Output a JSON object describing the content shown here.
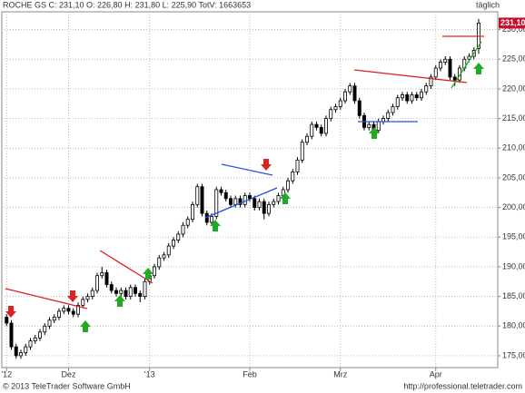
{
  "chart_data": {
    "type": "candlestick",
    "title": "ROCHE GS C: 231,10 O: 226,80 H: 231,80 L: 225,90 TotV: 1663653",
    "period": "täglich",
    "last_label": {
      "value": 231.1,
      "label": "231,10"
    },
    "footer_left": "© 2013 TeleTrader Software GmbH",
    "footer_right": "http://professional.teletrader.com",
    "xlim": [
      -1,
      103
    ],
    "xticks": [
      {
        "value": 0,
        "label": "'12"
      },
      {
        "value": 13,
        "label": "Dez"
      },
      {
        "value": 30,
        "label": "'13"
      },
      {
        "value": 51,
        "label": "Feb"
      },
      {
        "value": 70,
        "label": "Mrz"
      },
      {
        "value": 90,
        "label": "Apr"
      }
    ],
    "ylim": [
      173,
      233
    ],
    "yticks": [
      {
        "value": 175,
        "label": "175,00"
      },
      {
        "value": 180,
        "label": "180,00"
      },
      {
        "value": 185,
        "label": "185,00"
      },
      {
        "value": 190,
        "label": "190,00"
      },
      {
        "value": 195,
        "label": "195,00"
      },
      {
        "value": 200,
        "label": "200,00"
      },
      {
        "value": 205,
        "label": "205,00"
      },
      {
        "value": 210,
        "label": "210,00"
      },
      {
        "value": 215,
        "label": "215,00"
      },
      {
        "value": 220,
        "label": "220,00"
      },
      {
        "value": 225,
        "label": "225,00"
      },
      {
        "value": 230,
        "label": "230,00"
      }
    ],
    "grid": true,
    "up_color": "#ffffff",
    "down_color": "#000000",
    "open": [
      181.5,
      180.5,
      176.5,
      175,
      175.5,
      176.5,
      177.5,
      178,
      179,
      180,
      181,
      181.5,
      182.5,
      183,
      182.5,
      182,
      183.5,
      184.5,
      185,
      186,
      188.5,
      189,
      187,
      186,
      185.5,
      186,
      185,
      186.5,
      185.5,
      185,
      187.5,
      188.5,
      190,
      191.5,
      192,
      193.5,
      194.5,
      195.5,
      197,
      198,
      200.5,
      203.5,
      199,
      197.5,
      198.5,
      203,
      202.5,
      201.5,
      200.5,
      201.5,
      200.5,
      202,
      201.5,
      200,
      201,
      199,
      200.5,
      201,
      202,
      203,
      204.5,
      206,
      208,
      211,
      212,
      214,
      213.5,
      212.5,
      215,
      216.5,
      217,
      218,
      219.5,
      220.5,
      218,
      215.5,
      213.5,
      214,
      213,
      214.5,
      215,
      216,
      217,
      218.5,
      219,
      218,
      219,
      218.5,
      219.5,
      220.5,
      222,
      223.5,
      224.5,
      225,
      222,
      221.5,
      223.5,
      225,
      225.5,
      226.8
    ],
    "high": [
      182,
      181,
      177,
      176,
      177,
      178,
      178.5,
      179.5,
      180.5,
      181.5,
      182,
      183,
      183.5,
      183.5,
      183,
      184,
      185,
      185.5,
      186.5,
      189,
      190,
      189.5,
      187.5,
      186.5,
      186.5,
      186.5,
      187,
      187,
      186,
      188,
      189,
      190.5,
      192,
      192.5,
      194,
      195,
      196,
      197.5,
      198.5,
      201,
      204,
      204,
      199.5,
      199,
      203.5,
      203.5,
      203,
      202,
      202,
      202,
      202.5,
      202.5,
      202,
      201.5,
      201.5,
      201,
      201.5,
      202.5,
      203.5,
      205,
      206.5,
      208.5,
      211.5,
      212.5,
      214.5,
      214.5,
      214,
      215.5,
      217,
      217.5,
      218.5,
      220,
      221,
      221,
      218.5,
      216,
      214.5,
      214.5,
      215,
      215.5,
      216.5,
      217.5,
      219,
      219.5,
      219.5,
      219.5,
      219.5,
      220,
      221,
      222.5,
      224,
      225,
      225.5,
      225.5,
      222.5,
      224,
      225.5,
      226,
      227,
      231.8
    ],
    "low": [
      180,
      176,
      174.5,
      174.5,
      175,
      176,
      177,
      177.5,
      178.5,
      179.5,
      180.5,
      181,
      182,
      182,
      181.5,
      181.5,
      183,
      184,
      184.5,
      185.5,
      188,
      186.5,
      185.5,
      185,
      185,
      184.5,
      184.5,
      185,
      184,
      184.5,
      187,
      188,
      189.5,
      191,
      191.5,
      193,
      194,
      195,
      196.5,
      197.5,
      200,
      198.5,
      197,
      197,
      198,
      202,
      201,
      200,
      200,
      200,
      200,
      201,
      199.5,
      199.5,
      198,
      198.5,
      200,
      200.5,
      201.5,
      202.5,
      204,
      205.5,
      207.5,
      210.5,
      211.5,
      213,
      212,
      212,
      214.5,
      216,
      216.5,
      217.5,
      219,
      217.5,
      215,
      213,
      213,
      212.5,
      212.5,
      214,
      214.5,
      215.5,
      216.5,
      218,
      217.5,
      217.5,
      218,
      218,
      219,
      220,
      221.5,
      223,
      224,
      221.5,
      220.5,
      221,
      223,
      224.5,
      225,
      225.9
    ],
    "close": [
      180.5,
      176.5,
      175,
      175.5,
      176.5,
      177.5,
      178,
      179,
      180,
      181,
      181.5,
      182.5,
      183,
      182.5,
      182,
      183.5,
      184.5,
      185,
      186,
      188.5,
      189,
      187,
      186,
      185.5,
      186,
      185,
      186.5,
      185.5,
      185,
      187.5,
      188.5,
      190,
      191.5,
      192,
      193.5,
      194.5,
      195.5,
      197,
      198,
      200.5,
      203.5,
      199,
      197.5,
      198.5,
      203,
      202.5,
      201.5,
      200.5,
      201.5,
      200.5,
      202,
      201.5,
      200,
      201,
      199,
      200.5,
      201,
      202,
      203,
      204.5,
      206,
      208,
      211,
      212,
      214,
      213.5,
      212.5,
      215,
      216.5,
      217,
      218,
      219.5,
      220.5,
      218,
      215.5,
      213.5,
      214,
      213,
      214.5,
      215,
      216,
      217,
      218.5,
      219,
      218,
      219,
      218.5,
      219.5,
      220.5,
      222,
      223.5,
      224.5,
      225,
      222,
      221.5,
      223.5,
      225,
      225.5,
      226.5,
      231.1
    ]
  }
}
